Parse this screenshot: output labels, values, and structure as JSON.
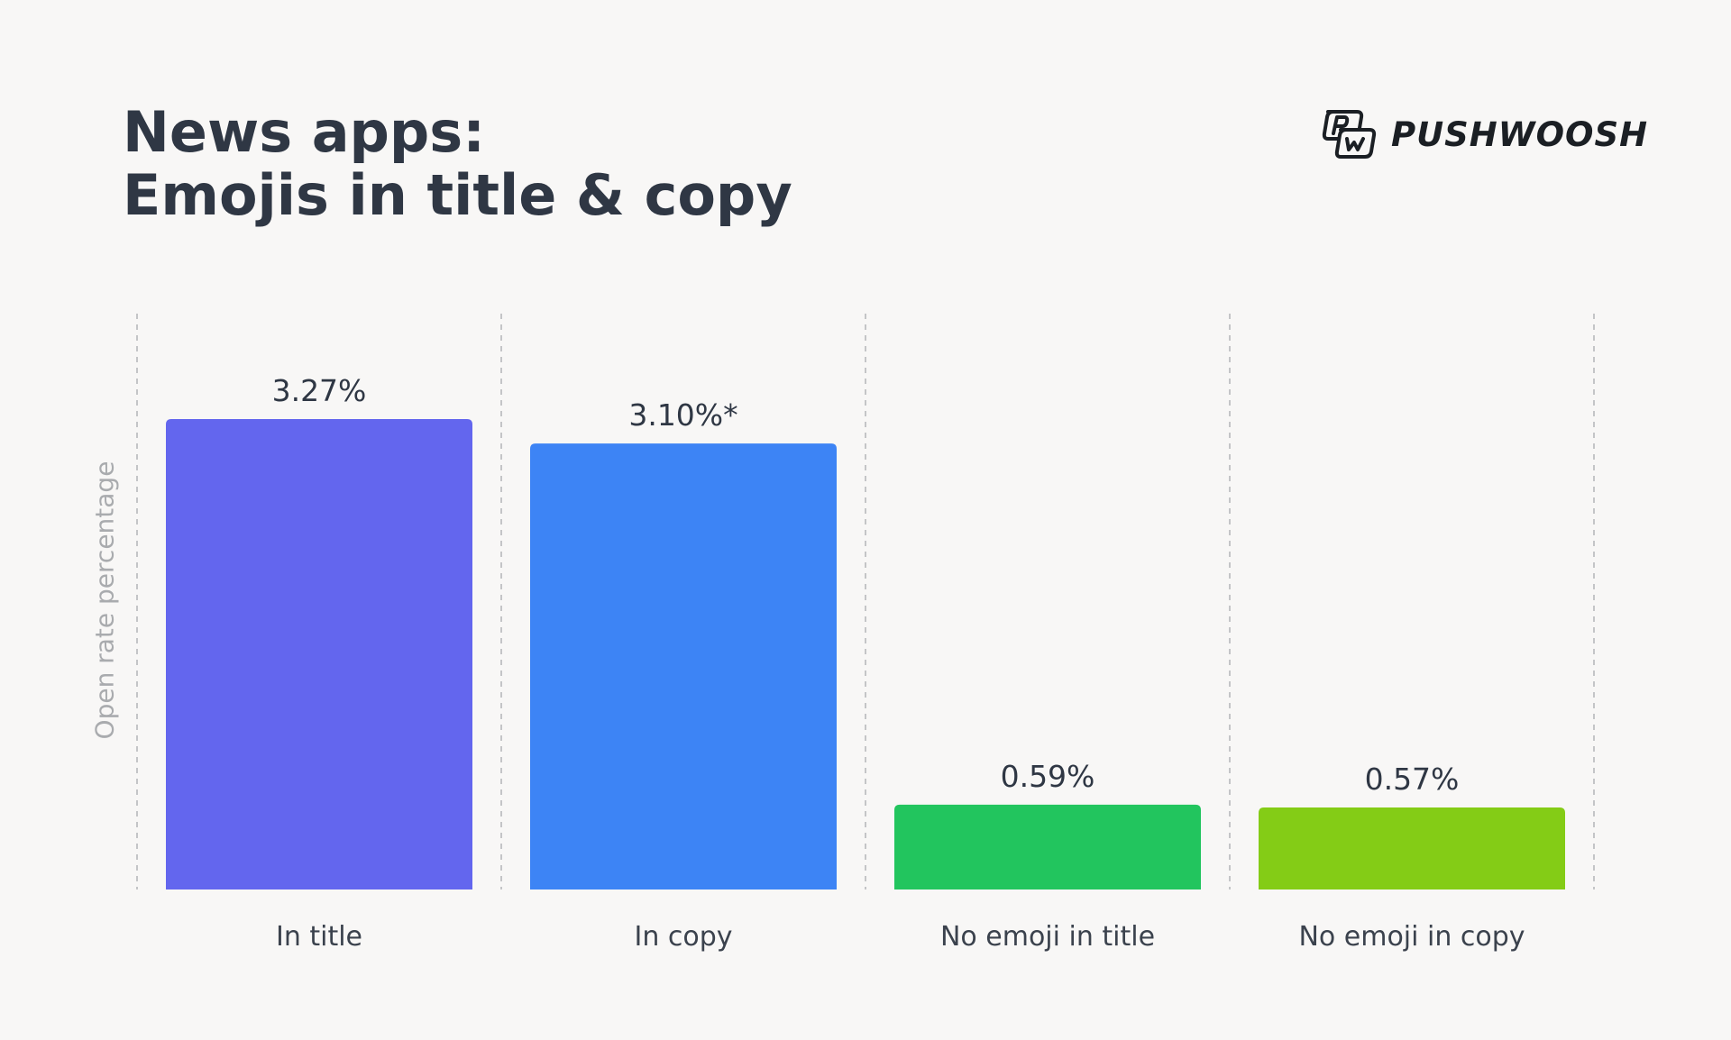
{
  "header": {
    "title_line1": "News apps:",
    "title_line2": "Emojis in title & copy"
  },
  "logo": {
    "text": "PUSHWOOSH",
    "icon": "pushwoosh-pw-icon"
  },
  "chart_data": {
    "type": "bar",
    "title": "News apps: Emojis in title & copy",
    "ylabel": "Open rate percentage",
    "xlabel": "",
    "categories": [
      "In title",
      "In copy",
      "No emoji in title",
      "No emoji in copy"
    ],
    "values": [
      3.27,
      3.1,
      0.59,
      0.57
    ],
    "value_labels": [
      "3.27%",
      "3.10%*",
      "0.59%",
      "0.57%"
    ],
    "colors": [
      "#6366ee",
      "#3d84f5",
      "#22c55e",
      "#84cc16"
    ],
    "ylim": [
      0,
      3.27
    ],
    "grid": "vertical dashed separators",
    "axes_ticks": false
  }
}
